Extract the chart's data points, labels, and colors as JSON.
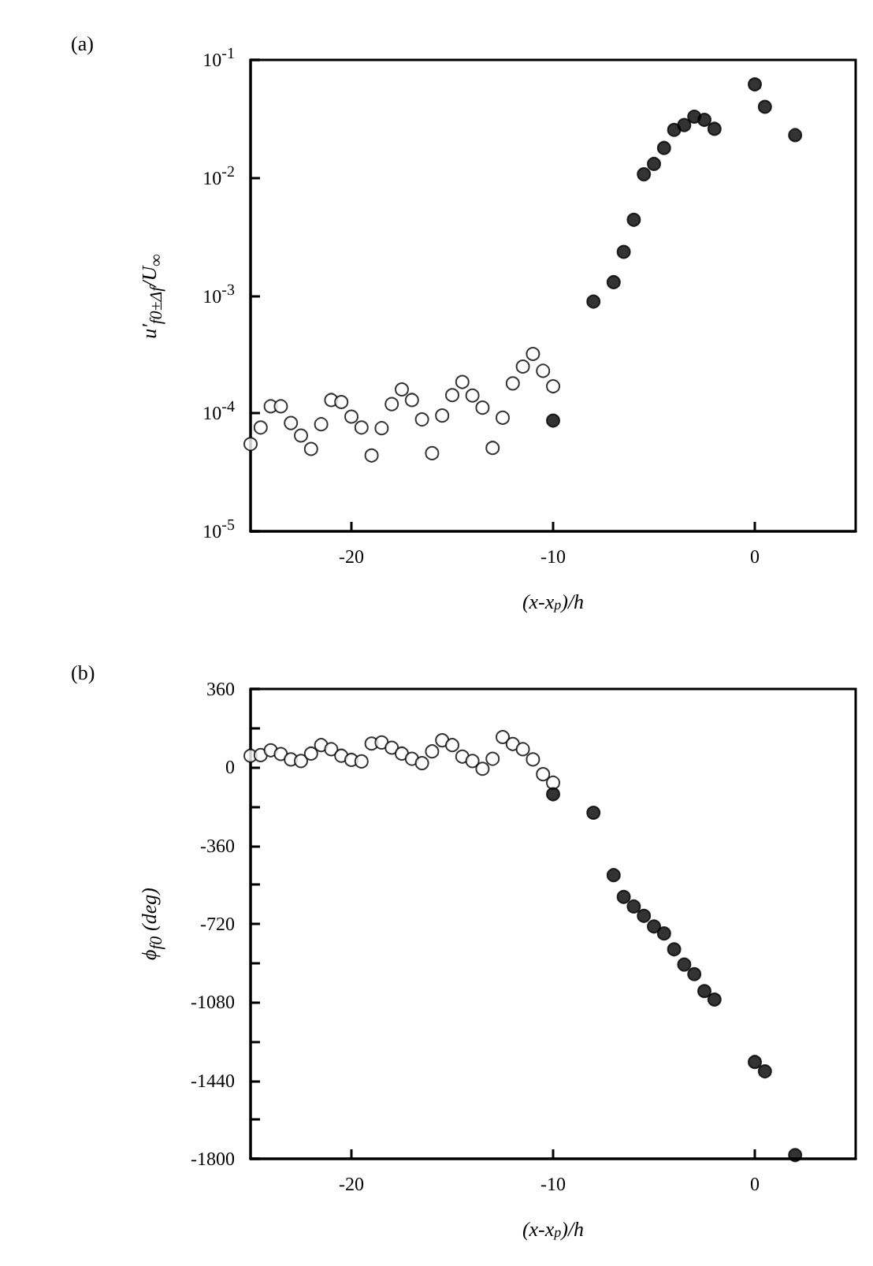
{
  "chart_data": [
    {
      "type": "scatter",
      "title": "(a)",
      "xlabel": "(x-x$_{p}$)/h",
      "ylabel": "u'$_{f0±Δf}$/U$_{∞}$",
      "marker": "circle",
      "log": "y",
      "xlim": [
        -25,
        5
      ],
      "xticks": [
        -20,
        -10,
        0
      ],
      "ylim": [
        1e-05,
        0.1
      ],
      "yticks": [
        {
          "value": 1e-05,
          "label": "10$^{-5}$"
        },
        {
          "value": 0.0001,
          "label": "10$^{-4}$"
        },
        {
          "value": 0.001,
          "label": "10$^{-3}$"
        },
        {
          "value": 0.01,
          "label": "10$^{-2}$"
        },
        {
          "value": 0.1,
          "label": "10$^{-1}$"
        }
      ],
      "series": [
        {
          "color": "#ffffff",
          "x": [
            -25,
            -24.5,
            -24,
            -23.5,
            -23,
            -22.5,
            -22,
            -21.5,
            -21,
            -20.5,
            -20,
            -19.5,
            -19,
            -18.5,
            -18,
            -17.5,
            -17,
            -16.5,
            -16,
            -15.5,
            -15,
            -14.5,
            -14,
            -13.5,
            -13,
            -12.5,
            -12,
            -11.5,
            -11,
            -10.5,
            -10
          ],
          "values": [
            5.5e-05,
            7.6e-05,
            0.000115,
            0.000115,
            8.3e-05,
            6.5e-05,
            5e-05,
            8.1e-05,
            0.00013,
            0.000125,
            9.4e-05,
            7.6e-05,
            4.4e-05,
            7.5e-05,
            0.00012,
            0.00016,
            0.00013,
            8.9e-05,
            4.6e-05,
            9.6e-05,
            0.000143,
            0.000185,
            0.000142,
            0.000112,
            5.1e-05,
            9.2e-05,
            0.00018,
            0.00025,
            0.00032,
            0.00023,
            0.00017
          ]
        },
        {
          "color": "#000000",
          "x": [
            -10,
            -8,
            -7,
            -6.5,
            -6,
            -5.5,
            -5,
            -4.5,
            -4,
            -3.5,
            -3,
            -2.5,
            -2,
            0,
            0.5,
            2
          ],
          "values": [
            8.7e-05,
            0.00089,
            0.0013,
            0.00235,
            0.0044,
            0.0107,
            0.0131,
            0.0179,
            0.0255,
            0.028,
            0.033,
            0.031,
            0.026,
            0.062,
            0.04,
            0.023
          ]
        }
      ]
    },
    {
      "type": "scatter",
      "title": "(b)",
      "xlabel": "(x-x$_{p}$)/h",
      "ylabel": "ϕ$_{f0}$ (deg)",
      "marker": "circle",
      "xlim": [
        -25,
        5
      ],
      "xticks": [
        -20,
        -10,
        0
      ],
      "ylim": [
        -1800,
        360
      ],
      "yticks": [
        -1800,
        {
          "value": -1620,
          "label": null
        },
        -1440,
        {
          "value": -1260,
          "label": null
        },
        -1080,
        {
          "value": -900,
          "label": null
        },
        -720,
        {
          "value": -540,
          "label": null
        },
        -360,
        {
          "value": -180,
          "label": null
        },
        0,
        {
          "value": 180,
          "label": null
        },
        360
      ],
      "series": [
        {
          "color": "#ffffff",
          "x": [
            -25,
            -24.5,
            -24,
            -23.5,
            -23,
            -22.5,
            -22,
            -21.5,
            -21,
            -20.5,
            -20,
            -19.5,
            -19,
            -18.5,
            -18,
            -17.5,
            -17,
            -16.5,
            -16,
            -15.5,
            -15,
            -14.5,
            -14,
            -13.5,
            -13,
            -12.5,
            -12,
            -11.5,
            -11,
            -10.5,
            -10
          ],
          "values": [
            53,
            56,
            78,
            61,
            36,
            29,
            63,
            102,
            83,
            53,
            34,
            27,
            109,
            114,
            90,
            63,
            39,
            19,
            73,
            124,
            102,
            49,
            29,
            -7,
            39,
            139,
            107,
            83,
            36,
            -32,
            -71
          ]
        },
        {
          "color": "#000000",
          "x": [
            -10,
            -8,
            -7,
            -6.5,
            -6,
            -5.5,
            -5,
            -4.5,
            -4,
            -3.5,
            -3,
            -2.5,
            -2,
            0,
            0.5,
            2
          ],
          "values": [
            -124,
            -209,
            -496,
            -596,
            -640,
            -683,
            -732,
            -764,
            -837,
            -907,
            -951,
            -1029,
            -1068,
            -1355,
            -1398,
            -1783
          ]
        }
      ]
    }
  ]
}
